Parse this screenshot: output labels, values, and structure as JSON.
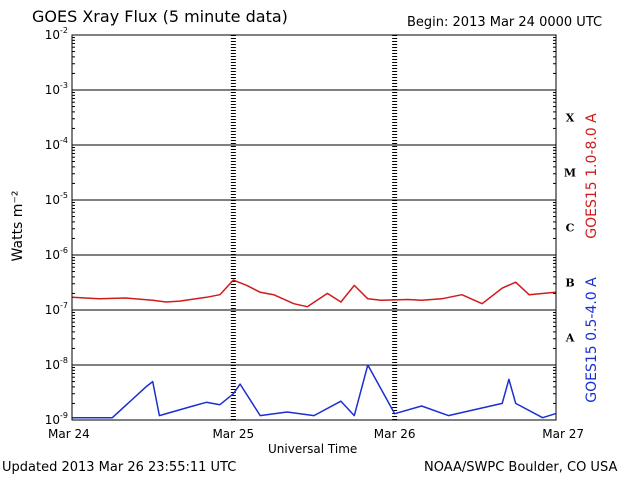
{
  "header": {
    "title": "GOES Xray Flux (5 minute data)",
    "begin": "Begin:  2013 Mar 24 0000 UTC"
  },
  "footer": {
    "updated": "Updated 2013 Mar 26 23:55:11 UTC",
    "credit": "NOAA/SWPC Boulder, CO USA"
  },
  "colors": {
    "long": "#d11b1b",
    "short": "#1b2fd1",
    "grid": "#000000"
  },
  "chart_data": {
    "type": "line",
    "title": "GOES Xray Flux (5 minute data)",
    "xlabel": "Universal Time",
    "ylabel": "Watts m⁻²",
    "yscale": "log",
    "ylim": [
      1e-09,
      0.01
    ],
    "xlim": [
      "2013-03-24",
      "2013-03-27"
    ],
    "x_tick_labels": [
      "Mar 24",
      "Mar 25",
      "Mar 26",
      "Mar 27"
    ],
    "y_tick_labels": [
      {
        "mant": "10",
        "exp": "-2"
      },
      {
        "mant": "10",
        "exp": "-3"
      },
      {
        "mant": "10",
        "exp": "-4"
      },
      {
        "mant": "10",
        "exp": "-5"
      },
      {
        "mant": "10",
        "exp": "-6"
      },
      {
        "mant": "10",
        "exp": "-7"
      },
      {
        "mant": "10",
        "exp": "-8"
      },
      {
        "mant": "10",
        "exp": "-9"
      }
    ],
    "flare_classes": [
      "X",
      "M",
      "C",
      "B",
      "A"
    ],
    "grid": true,
    "legend": "right side, vertical",
    "series": [
      {
        "name": "GOES15 1.0-8.0 A",
        "x": [
          "2013-03-24T00:00",
          "2013-03-24T04:00",
          "2013-03-24T08:00",
          "2013-03-24T12:00",
          "2013-03-24T14:00",
          "2013-03-24T16:00",
          "2013-03-24T20:00",
          "2013-03-24T22:00",
          "2013-03-25T00:00",
          "2013-03-25T02:00",
          "2013-03-25T04:00",
          "2013-03-25T06:00",
          "2013-03-25T09:00",
          "2013-03-25T11:00",
          "2013-03-25T14:00",
          "2013-03-25T16:00",
          "2013-03-25T18:00",
          "2013-03-25T20:00",
          "2013-03-25T22:00",
          "2013-03-26T02:00",
          "2013-03-26T04:00",
          "2013-03-26T07:00",
          "2013-03-26T10:00",
          "2013-03-26T13:00",
          "2013-03-26T16:00",
          "2013-03-26T18:00",
          "2013-03-26T20:00",
          "2013-03-26T23:55"
        ],
        "values": [
          1.7e-07,
          1.6e-07,
          1.65e-07,
          1.5e-07,
          1.4e-07,
          1.45e-07,
          1.7e-07,
          1.9e-07,
          3.5e-07,
          2.8e-07,
          2.1e-07,
          1.9e-07,
          1.3e-07,
          1.15e-07,
          2e-07,
          1.4e-07,
          2.8e-07,
          1.6e-07,
          1.5e-07,
          1.55e-07,
          1.5e-07,
          1.6e-07,
          1.9e-07,
          1.3e-07,
          2.5e-07,
          3.2e-07,
          1.9e-07,
          2.1e-07
        ]
      },
      {
        "name": "GOES15 0.5-4.0 A",
        "x": [
          "2013-03-24T00:00",
          "2013-03-24T06:00",
          "2013-03-24T11:00",
          "2013-03-24T12:00",
          "2013-03-24T13:00",
          "2013-03-24T18:00",
          "2013-03-24T20:00",
          "2013-03-24T22:00",
          "2013-03-25T00:00",
          "2013-03-25T01:00",
          "2013-03-25T04:00",
          "2013-03-25T08:00",
          "2013-03-25T12:00",
          "2013-03-25T16:00",
          "2013-03-25T18:00",
          "2013-03-25T20:00",
          "2013-03-26T00:00",
          "2013-03-26T04:00",
          "2013-03-26T08:00",
          "2013-03-26T16:00",
          "2013-03-26T17:00",
          "2013-03-26T18:00",
          "2013-03-26T22:00",
          "2013-03-26T23:55"
        ],
        "values": [
          1.1e-09,
          1.1e-09,
          4e-09,
          5e-09,
          1.2e-09,
          1.8e-09,
          2.1e-09,
          1.9e-09,
          3e-09,
          4.5e-09,
          1.2e-09,
          1.4e-09,
          1.2e-09,
          2.2e-09,
          1.2e-09,
          1e-08,
          1.3e-09,
          1.8e-09,
          1.2e-09,
          2e-09,
          5.5e-09,
          2e-09,
          1.1e-09,
          1.3e-09
        ]
      }
    ]
  }
}
